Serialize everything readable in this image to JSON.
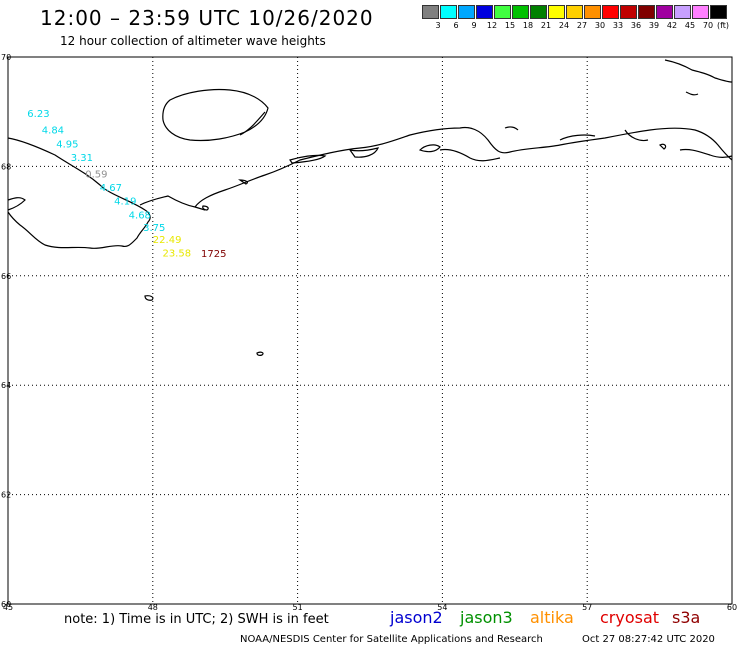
{
  "header": {
    "title": "12:00 – 23:59 UTC 10/26/2020",
    "subtitle": "12 hour collection of altimeter wave heights"
  },
  "legend": {
    "unit": "(ft)",
    "items": [
      {
        "color": "#808080",
        "label": "3"
      },
      {
        "color": "#00ffff",
        "label": "6"
      },
      {
        "color": "#00a8ff",
        "label": "9"
      },
      {
        "color": "#0000e0",
        "label": "12"
      },
      {
        "color": "#40ff40",
        "label": "15"
      },
      {
        "color": "#00c000",
        "label": "18"
      },
      {
        "color": "#008000",
        "label": "21"
      },
      {
        "color": "#ffff00",
        "label": "24"
      },
      {
        "color": "#ffd000",
        "label": "27"
      },
      {
        "color": "#ff9000",
        "label": "30"
      },
      {
        "color": "#ff0000",
        "label": "33"
      },
      {
        "color": "#c00000",
        "label": "36"
      },
      {
        "color": "#800000",
        "label": "39"
      },
      {
        "color": "#a000a0",
        "label": "42"
      },
      {
        "color": "#c8a0ff",
        "label": "45"
      },
      {
        "color": "#ff80ff",
        "label": "70"
      },
      {
        "color": "#000000",
        "label": ""
      }
    ]
  },
  "axes": {
    "lat_labels": [
      "70",
      "68",
      "66",
      "64",
      "62",
      "60"
    ],
    "lon_labels": [
      "45",
      "48",
      "51",
      "54",
      "57",
      "60"
    ]
  },
  "observations": [
    {
      "text": "6.23",
      "color": "#00d8e8",
      "lon": 45.4,
      "lat": 68.9
    },
    {
      "text": "4.84",
      "color": "#00d8e8",
      "lon": 45.7,
      "lat": 68.6
    },
    {
      "text": "4.95",
      "color": "#00d8e8",
      "lon": 46.0,
      "lat": 68.35
    },
    {
      "text": "3.31",
      "color": "#00d8e8",
      "lon": 46.3,
      "lat": 68.1
    },
    {
      "text": "0.59",
      "color": "#909090",
      "lon": 46.6,
      "lat": 67.8
    },
    {
      "text": "4.67",
      "color": "#00d8e8",
      "lon": 46.9,
      "lat": 67.55
    },
    {
      "text": "4.19",
      "color": "#00d8e8",
      "lon": 47.2,
      "lat": 67.3
    },
    {
      "text": "4.68",
      "color": "#00d8e8",
      "lon": 47.5,
      "lat": 67.05
    },
    {
      "text": "3.75",
      "color": "#00d8e8",
      "lon": 47.8,
      "lat": 66.82
    },
    {
      "text": "22.49",
      "color": "#e8e800",
      "lon": 48.0,
      "lat": 66.6
    },
    {
      "text": "23.58",
      "color": "#e8e800",
      "lon": 48.2,
      "lat": 66.35
    }
  ],
  "time_label": {
    "text": "1725",
    "color": "#800000"
  },
  "note": "note: 1) Time is in UTC; 2) SWH is in feet",
  "satellites": [
    {
      "name": "jason2",
      "color": "#0000d0"
    },
    {
      "name": "jason3",
      "color": "#009000"
    },
    {
      "name": "altika",
      "color": "#ff9000"
    },
    {
      "name": "cryosat",
      "color": "#e00000"
    },
    {
      "name": "s3a",
      "color": "#900000"
    }
  ],
  "credit": "NOAA/NESDIS Center for Satellite Applications and Research",
  "timestamp": "Oct 27 08:27:42 UTC 2020"
}
